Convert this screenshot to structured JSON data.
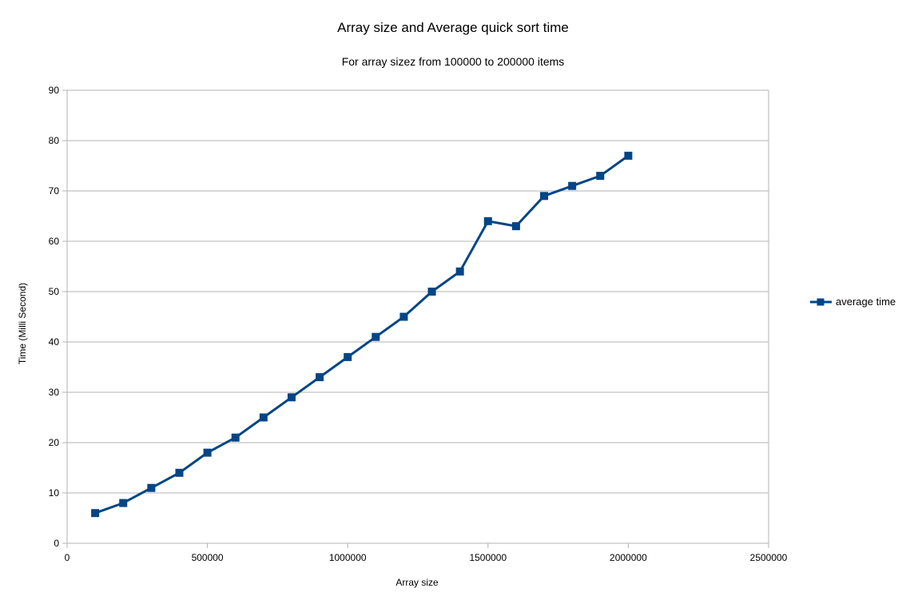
{
  "chart_data": {
    "type": "line",
    "title": "Array size and Average quick sort time",
    "subtitle": "For array sizez from 100000 to 200000 items",
    "xlabel": "Array size",
    "ylabel": "Time (Milli Second)",
    "xlim": [
      0,
      2500000
    ],
    "ylim": [
      0,
      90
    ],
    "x_ticks": [
      0,
      500000,
      1000000,
      1500000,
      2000000,
      2500000
    ],
    "y_ticks": [
      0,
      10,
      20,
      30,
      40,
      50,
      60,
      70,
      80,
      90
    ],
    "grid": true,
    "legend_position": "right",
    "series": [
      {
        "name": "average time",
        "color": "#004586",
        "marker": "square",
        "x": [
          100000,
          200000,
          300000,
          400000,
          500000,
          600000,
          700000,
          800000,
          900000,
          1000000,
          1100000,
          1200000,
          1300000,
          1400000,
          1500000,
          1600000,
          1700000,
          1800000,
          1900000,
          2000000
        ],
        "values": [
          6,
          8,
          11,
          14,
          18,
          21,
          25,
          29,
          33,
          37,
          41,
          45,
          50,
          54,
          64,
          63,
          69,
          71,
          73,
          77
        ]
      }
    ]
  }
}
